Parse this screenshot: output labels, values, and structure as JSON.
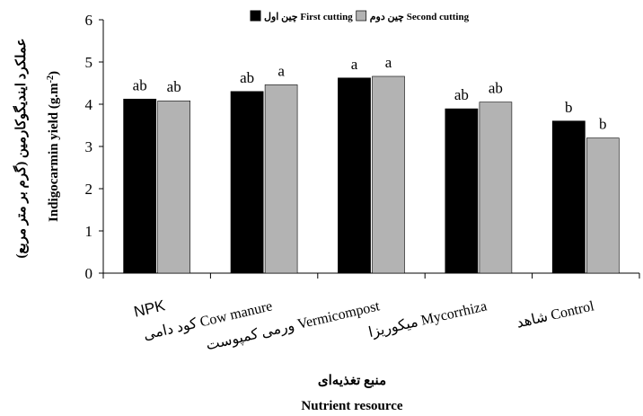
{
  "chart_data": {
    "type": "bar",
    "categories": [
      "NPK",
      "کود دامی Cow manure",
      "ورمی کمپوست Vermicompost",
      "میکوریزا Mycorrhiza",
      "شاهد Control"
    ],
    "series": [
      {
        "name": "چین اول First cutting",
        "color": "#000000",
        "values": [
          4.12,
          4.3,
          4.62,
          3.89,
          3.6
        ],
        "labels": [
          "ab",
          "ab",
          "a",
          "ab",
          "b"
        ]
      },
      {
        "name": "چین دوم Second cutting",
        "color": "#b3b3b3",
        "values": [
          4.08,
          4.46,
          4.66,
          4.05,
          3.2
        ],
        "labels": [
          "ab",
          "a",
          "a",
          "ab",
          "b"
        ]
      }
    ],
    "ylim": [
      0,
      6
    ],
    "yticks": [
      0,
      1,
      2,
      3,
      4,
      5,
      6
    ],
    "ylabel_fa": "عملکرد ایندیگوکارمین (گرم بر متر مربع)",
    "ylabel_en": "Indigocarmin yield (g.m",
    "ylabel_en_sup": "-2",
    "ylabel_en_close": ")",
    "xlabel_fa": "منبع تغذیه‌ای",
    "xlabel_en": "Nutrient resource",
    "legend_position": "top-center",
    "grid": false
  }
}
